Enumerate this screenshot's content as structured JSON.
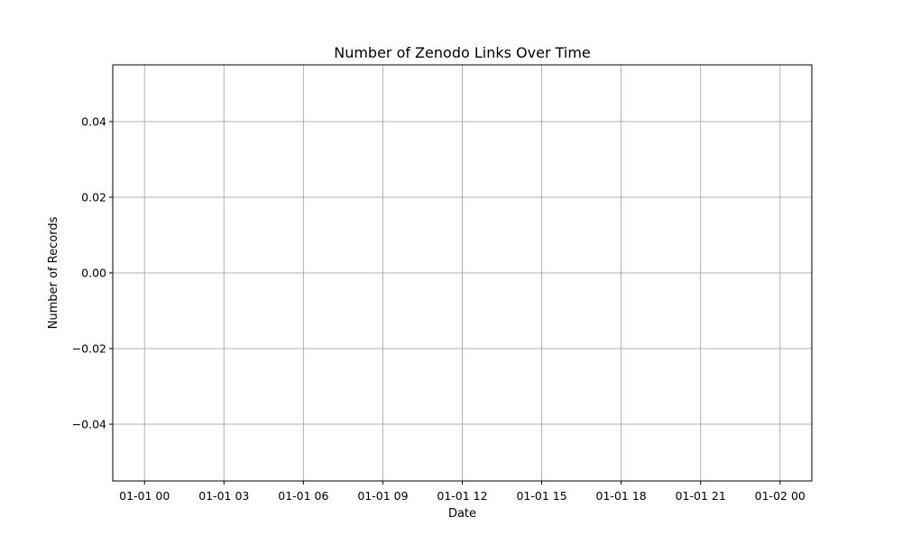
{
  "chart_data": {
    "type": "line",
    "title": "Number of Zenodo Links Over Time",
    "xlabel": "Date",
    "ylabel": "Number of Records",
    "x_ticks": [
      "01-01 00",
      "01-01 03",
      "01-01 06",
      "01-01 09",
      "01-01 12",
      "01-01 15",
      "01-01 18",
      "01-01 21",
      "01-02 00"
    ],
    "y_ticks": [
      "0.04",
      "0.02",
      "0.00",
      "−0.02",
      "−0.04"
    ],
    "y_tick_values": [
      0.04,
      0.02,
      0.0,
      -0.02,
      -0.04
    ],
    "ylim": [
      -0.055,
      0.055
    ],
    "x_tick_hours": [
      0,
      3,
      6,
      9,
      12,
      15,
      18,
      21,
      24
    ],
    "xlim_hours": [
      -1.2,
      25.2
    ],
    "grid": true,
    "series": [],
    "colors": {
      "grid": "#b0b0b0",
      "axes": "#000000",
      "background": "#ffffff"
    }
  }
}
